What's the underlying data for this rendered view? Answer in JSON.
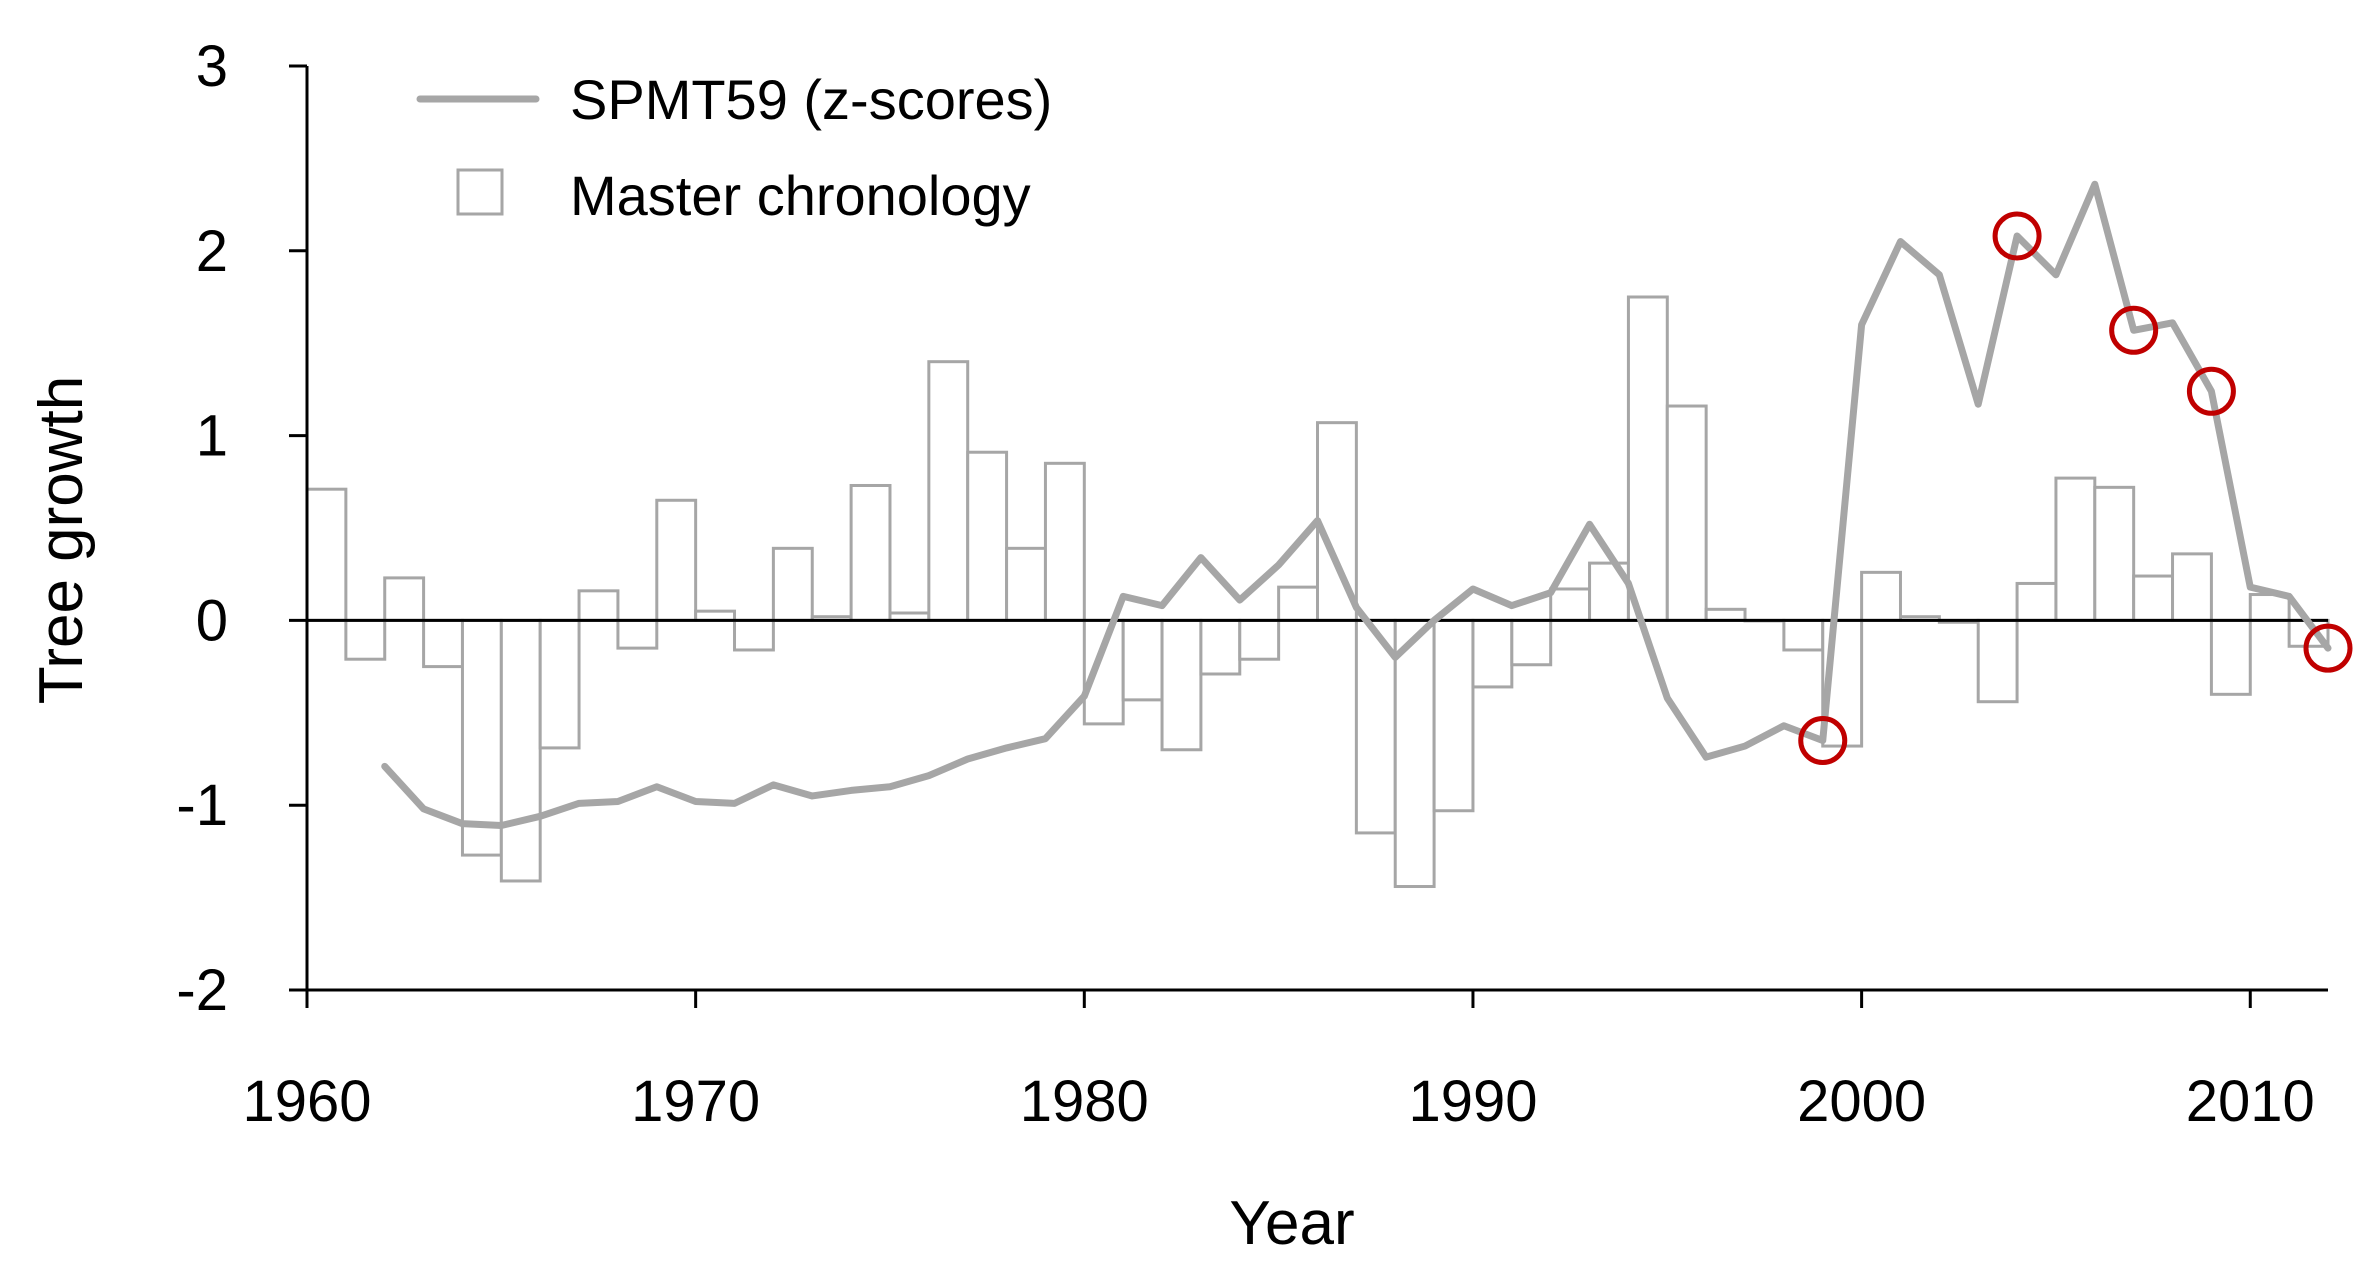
{
  "chart_data": {
    "type": "bar",
    "xlabel": "Year",
    "ylabel": "Tree growth",
    "xlim": [
      1960,
      2012
    ],
    "ylim": [
      -2,
      3
    ],
    "xticks": [
      1960,
      1970,
      1980,
      1990,
      2000,
      2010
    ],
    "yticks": [
      -2,
      -1,
      0,
      1,
      2,
      3
    ],
    "grid": false,
    "legend_position": "top-left",
    "series": [
      {
        "name": "SPMT59 (z-scores)",
        "type": "line",
        "color": "#a6a6a6",
        "x": [
          1962,
          1963,
          1964,
          1965,
          1966,
          1967,
          1968,
          1969,
          1970,
          1971,
          1972,
          1973,
          1974,
          1975,
          1976,
          1977,
          1978,
          1979,
          1980,
          1981,
          1982,
          1983,
          1984,
          1985,
          1986,
          1987,
          1988,
          1989,
          1990,
          1991,
          1992,
          1993,
          1994,
          1995,
          1996,
          1997,
          1998,
          1999,
          2000,
          2001,
          2002,
          2003,
          2004,
          2005,
          2006,
          2007,
          2008,
          2009,
          2010,
          2011,
          2012
        ],
        "y": [
          -0.79,
          -1.02,
          -1.1,
          -1.11,
          -1.06,
          -0.99,
          -0.98,
          -0.9,
          -0.98,
          -0.99,
          -0.89,
          -0.95,
          -0.92,
          -0.9,
          -0.84,
          -0.75,
          -0.69,
          -0.64,
          -0.41,
          0.13,
          0.08,
          0.34,
          0.11,
          0.3,
          0.54,
          0.07,
          -0.2,
          0.0,
          0.17,
          0.08,
          0.15,
          0.52,
          0.2,
          -0.42,
          -0.74,
          -0.68,
          -0.57,
          -0.65,
          1.6,
          2.05,
          1.87,
          1.17,
          2.08,
          1.87,
          2.36,
          1.57,
          1.61,
          1.24,
          0.18,
          0.13,
          -0.15
        ]
      },
      {
        "name": "Master chronology",
        "type": "bar",
        "color": "#a6a6a6",
        "x": [
          1960,
          1961,
          1962,
          1963,
          1964,
          1965,
          1966,
          1967,
          1968,
          1969,
          1970,
          1971,
          1972,
          1973,
          1974,
          1975,
          1976,
          1977,
          1978,
          1979,
          1980,
          1981,
          1982,
          1983,
          1984,
          1985,
          1986,
          1987,
          1988,
          1989,
          1990,
          1991,
          1992,
          1993,
          1994,
          1995,
          1996,
          1997,
          1998,
          1999,
          2000,
          2001,
          2002,
          2003,
          2004,
          2005,
          2006,
          2007,
          2008,
          2009,
          2010,
          2011
        ],
        "y": [
          0.71,
          -0.21,
          0.23,
          -0.25,
          -1.27,
          -1.41,
          -0.69,
          0.16,
          -0.15,
          0.65,
          0.05,
          -0.16,
          0.39,
          0.02,
          0.73,
          0.04,
          1.4,
          0.91,
          0.39,
          0.85,
          -0.56,
          -0.43,
          -0.7,
          -0.29,
          -0.21,
          0.18,
          1.07,
          -1.15,
          -1.44,
          -1.03,
          -0.36,
          -0.24,
          0.17,
          0.31,
          1.75,
          1.16,
          0.06,
          0.0,
          -0.16,
          -0.68,
          0.26,
          0.02,
          -0.01,
          -0.44,
          0.2,
          0.77,
          0.72,
          0.24,
          0.36,
          -0.4,
          0.14,
          -0.14
        ]
      }
    ],
    "highlighted_points": {
      "color": "#c00000",
      "x": [
        1999,
        2004,
        2007,
        2009,
        2012
      ],
      "y": [
        -0.65,
        2.08,
        1.57,
        1.24,
        -0.15
      ]
    }
  }
}
